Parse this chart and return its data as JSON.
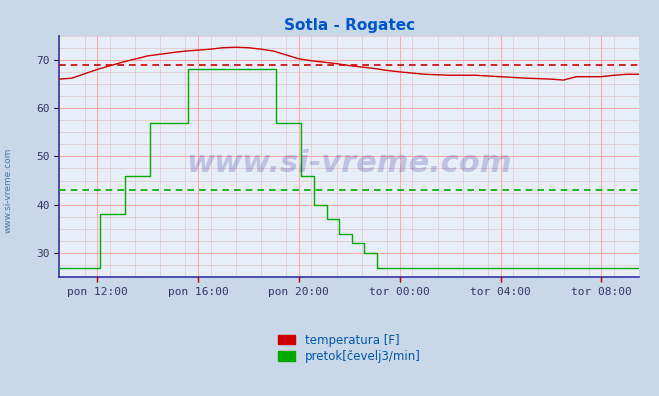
{
  "title": "Sotla - Rogatec",
  "title_color": "#0055cc",
  "fig_bg_color": "#c8d8e8",
  "plot_bg_color": "#e8eef8",
  "ylim": [
    25,
    75
  ],
  "yticks": [
    30,
    40,
    50,
    60,
    70
  ],
  "xtick_labels": [
    "pon 12:00",
    "pon 16:00",
    "pon 20:00",
    "tor 00:00",
    "tor 04:00",
    "tor 08:00"
  ],
  "watermark": "www.si-vreme.com",
  "legend_label1": "temperatura [F]",
  "legend_label2": "pretok[čevelj3/min]",
  "temp_color": "#cc0000",
  "flow_color": "#00aa00",
  "temp_avg_line": 69.0,
  "flow_avg_line": 43.0,
  "temp_avg_color": "#cc0000",
  "flow_avg_color": "#00aa00",
  "side_label": "www.si-vreme.com",
  "total_hours": 23.0,
  "xtick_hours": [
    1.5,
    5.5,
    9.5,
    13.5,
    17.5,
    21.5
  ],
  "temp_x": [
    0,
    0.5,
    1.5,
    2.5,
    3.5,
    4.5,
    5.0,
    5.5,
    6.0,
    6.5,
    7.0,
    7.5,
    8.0,
    8.5,
    9.0,
    9.5,
    10.0,
    10.5,
    11.0,
    11.5,
    12.0,
    12.5,
    13.0,
    13.5,
    14.5,
    15.5,
    16.5,
    17.5,
    18.5,
    19.5,
    20.0,
    20.5,
    21.0,
    21.5,
    22.0,
    22.5,
    23.0
  ],
  "temp_y": [
    66.0,
    66.2,
    68.0,
    69.5,
    70.8,
    71.5,
    71.8,
    72.0,
    72.2,
    72.5,
    72.6,
    72.5,
    72.2,
    71.8,
    71.0,
    70.2,
    69.8,
    69.5,
    69.2,
    68.8,
    68.5,
    68.2,
    67.8,
    67.5,
    67.0,
    66.8,
    66.8,
    66.5,
    66.2,
    66.0,
    65.8,
    66.5,
    66.5,
    66.5,
    66.8,
    67.0,
    67.0
  ],
  "flow_x": [
    0.0,
    0.5,
    1.5,
    1.6,
    2.5,
    2.6,
    3.5,
    3.6,
    5.0,
    5.1,
    8.0,
    8.1,
    8.5,
    8.6,
    9.5,
    9.6,
    10.0,
    10.1,
    10.5,
    10.6,
    11.0,
    11.1,
    11.5,
    11.6,
    12.0,
    12.1,
    12.5,
    12.6,
    13.5,
    13.6,
    14.5,
    17.5,
    17.6,
    19.0,
    19.5,
    23.0
  ],
  "flow_y": [
    27,
    27,
    27,
    38,
    38,
    46,
    46,
    57,
    57,
    68,
    68,
    68,
    68,
    57,
    57,
    46,
    46,
    40,
    40,
    37,
    37,
    34,
    34,
    32,
    32,
    30,
    30,
    27,
    27,
    27,
    27,
    27,
    27,
    27,
    27,
    27
  ]
}
